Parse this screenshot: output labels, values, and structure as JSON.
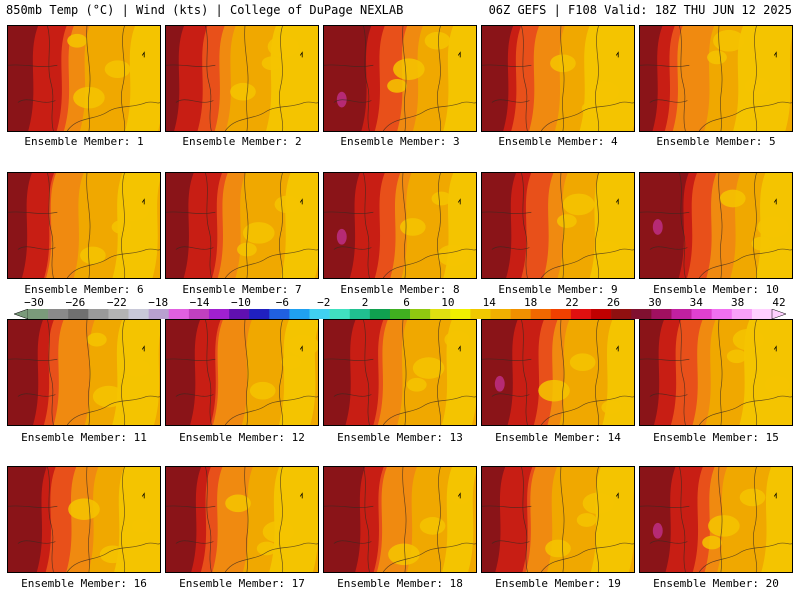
{
  "header": {
    "left": "850mb Temp (°C) | Wind (kts) | College of DuPage NEXLAB",
    "right": "06Z GEFS | F108 Valid: 18Z THU JUN 12 2025"
  },
  "members": [
    {
      "label": "Ensemble Member: 1",
      "west": 0.3
    },
    {
      "label": "Ensemble Member: 2",
      "west": 0.22
    },
    {
      "label": "Ensemble Member: 3",
      "west": 0.38
    },
    {
      "label": "Ensemble Member: 4",
      "west": 0.24
    },
    {
      "label": "Ensemble Member: 5",
      "west": 0.18
    },
    {
      "label": "Ensemble Member: 6",
      "west": 0.22
    },
    {
      "label": "Ensemble Member: 7",
      "west": 0.28
    },
    {
      "label": "Ensemble Member: 8",
      "west": 0.34
    },
    {
      "label": "Ensemble Member: 9",
      "west": 0.3
    },
    {
      "label": "Ensemble Member: 10",
      "west": 0.36
    },
    {
      "label": "Ensemble Member: 11",
      "west": 0.26
    },
    {
      "label": "Ensemble Member: 12",
      "west": 0.28
    },
    {
      "label": "Ensemble Member: 13",
      "west": 0.3
    },
    {
      "label": "Ensemble Member: 14",
      "west": 0.34
    },
    {
      "label": "Ensemble Member: 15",
      "west": 0.24
    },
    {
      "label": "Ensemble Member: 16",
      "west": 0.3
    },
    {
      "label": "Ensemble Member: 17",
      "west": 0.26
    },
    {
      "label": "Ensemble Member: 18",
      "west": 0.32
    },
    {
      "label": "Ensemble Member: 19",
      "west": 0.24
    },
    {
      "label": "Ensemble Member: 20",
      "west": 0.34
    }
  ],
  "colorbar": {
    "tick_labels": [
      "−30",
      "−26",
      "−22",
      "−18",
      "−14",
      "−10",
      "−6",
      "−2",
      "2",
      "6",
      "10",
      "14",
      "18",
      "22",
      "26",
      "30",
      "34",
      "38",
      "42"
    ],
    "colors": [
      "#7a9a7a",
      "#8a8a8a",
      "#707070",
      "#9a9a9a",
      "#b4b4b4",
      "#c8c8d8",
      "#b8a0d0",
      "#e060e0",
      "#c040c0",
      "#a020d0",
      "#6010b0",
      "#2020c0",
      "#2060e0",
      "#20a0f0",
      "#40d0f0",
      "#40e0c0",
      "#20c090",
      "#10a050",
      "#40b020",
      "#90c810",
      "#e0e010",
      "#f0f000",
      "#f0c800",
      "#f0b000",
      "#f09000",
      "#f06800",
      "#f04000",
      "#e01010",
      "#c00000",
      "#901010",
      "#801030",
      "#a01060",
      "#c020a0",
      "#e040d0",
      "#f070f0",
      "#f8a0f8",
      "#ffd0ff"
    ]
  },
  "palette": {
    "hot_dark": "#8a1418",
    "hot": "#c81e14",
    "warm": "#e8501a",
    "orange": "#f08a10",
    "amber": "#f0a800",
    "yellow": "#f4c400",
    "magenta": "#c0308c"
  }
}
